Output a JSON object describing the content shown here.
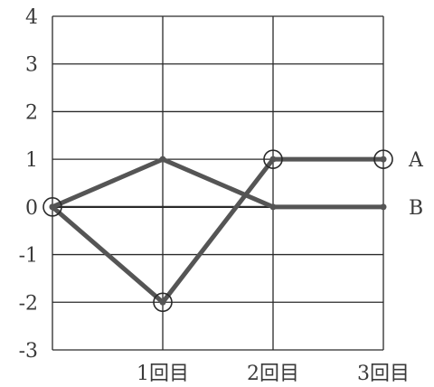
{
  "chart_data": {
    "type": "line",
    "title": "",
    "xlabel": "",
    "ylabel": "",
    "x_tick_labels": [
      "",
      "1回目",
      "2回目",
      "3回目"
    ],
    "y_ticks": [
      4,
      3,
      2,
      1,
      0,
      -1,
      -2,
      -3
    ],
    "y_tick_labels": [
      "4",
      "3",
      "2",
      "1",
      "0",
      "-1",
      "-2",
      "-3"
    ],
    "xlim": [
      0,
      3
    ],
    "ylim": [
      -3,
      4
    ],
    "grid": true,
    "series": [
      {
        "name": "A",
        "values": [
          0,
          -2,
          1,
          1
        ],
        "circled": [
          true,
          true,
          true,
          true
        ]
      },
      {
        "name": "B",
        "values": [
          0,
          1,
          0,
          0
        ],
        "circled": [
          false,
          false,
          false,
          false
        ]
      }
    ],
    "colors": {
      "grid": "#2a2a2a",
      "line": "#555555",
      "text": "#3a3a3a"
    }
  }
}
